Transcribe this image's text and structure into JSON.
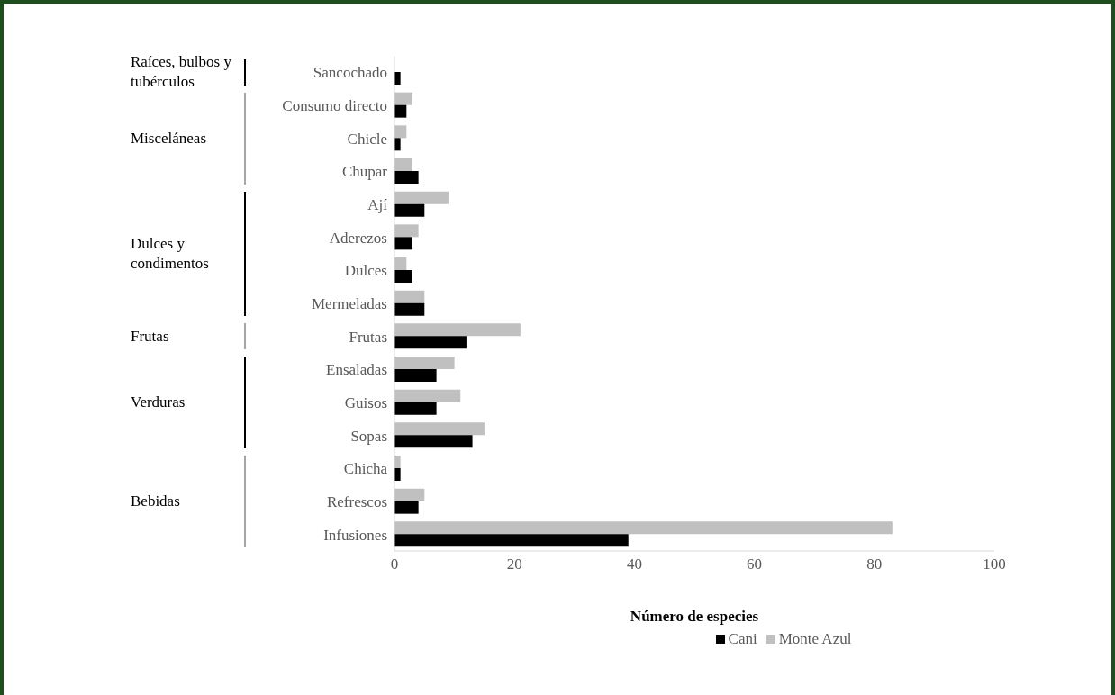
{
  "chart_data": {
    "type": "bar",
    "orientation": "horizontal",
    "xlabel": "Número de especies",
    "categories": [
      "Sancochado",
      "Consumo directo",
      "Chicle",
      "Chupar",
      "Ají",
      "Aderezos",
      "Dulces",
      "Mermeladas",
      "Frutas",
      "Ensaladas",
      "Guisos",
      "Sopas",
      "Chicha",
      "Refrescos",
      "Infusiones"
    ],
    "series": [
      {
        "name": "Cani",
        "color": "#000000",
        "values": [
          1,
          2,
          1,
          4,
          5,
          3,
          3,
          5,
          12,
          7,
          7,
          13,
          1,
          4,
          39
        ]
      },
      {
        "name": "Monte Azul",
        "color": "#c0c0c0",
        "values": [
          0,
          3,
          2,
          3,
          9,
          4,
          2,
          5,
          21,
          10,
          11,
          15,
          1,
          5,
          83
        ]
      }
    ],
    "annotations": [
      "Raíces, bulbos y tubérculos",
      "Misceláneas",
      "Dulces y condimentos",
      "Frutas",
      "Verduras",
      "Bebidas"
    ],
    "xlim": [
      0,
      100
    ],
    "xticks": [
      0,
      20,
      40,
      60,
      80,
      100
    ],
    "grid": false,
    "legend": "bottom"
  }
}
